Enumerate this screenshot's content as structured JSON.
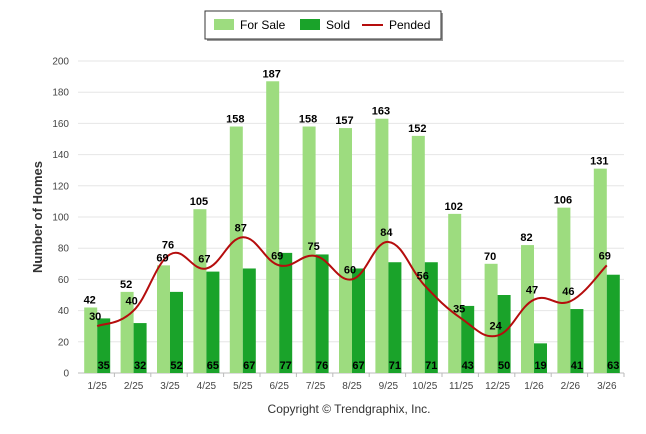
{
  "chart_data": {
    "type": "bar",
    "title": "",
    "xlabel": "",
    "ylabel": "Number of Homes",
    "ylim": [
      0,
      200
    ],
    "yticks": [
      0,
      20,
      40,
      60,
      80,
      100,
      120,
      140,
      160,
      180,
      200
    ],
    "grid": true,
    "legend_position": "top-center",
    "categories": [
      "1/25",
      "2/25",
      "3/25",
      "4/25",
      "5/25",
      "6/25",
      "7/25",
      "8/25",
      "9/25",
      "10/25",
      "11/25",
      "12/25",
      "1/26",
      "2/26",
      "3/26"
    ],
    "series": [
      {
        "name": "For Sale",
        "kind": "bar",
        "color": "#9ddc7f",
        "values": [
          42,
          52,
          69,
          105,
          158,
          187,
          158,
          157,
          163,
          152,
          102,
          70,
          82,
          106,
          131
        ]
      },
      {
        "name": "Sold",
        "kind": "bar",
        "color": "#1aa32a",
        "values": [
          35,
          32,
          52,
          65,
          67,
          77,
          76,
          67,
          71,
          71,
          43,
          50,
          19,
          41,
          63
        ]
      },
      {
        "name": "Pended",
        "kind": "line",
        "color": "#b50d0d",
        "values": [
          30,
          40,
          76,
          67,
          87,
          69,
          75,
          60,
          84,
          56,
          35,
          24,
          47,
          46,
          69
        ]
      }
    ]
  },
  "footer": {
    "copyright": "Copyright © Trendgraphix, Inc."
  }
}
